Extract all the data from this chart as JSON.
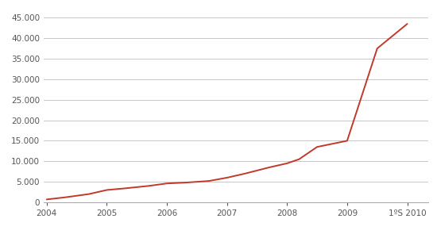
{
  "x_labels": [
    "2004",
    "2005",
    "2006",
    "2007",
    "2008",
    "2009",
    "1ºS 2010"
  ],
  "x_ticks": [
    0,
    1,
    2,
    3,
    4,
    5,
    6
  ],
  "x_data": [
    0,
    0.3,
    0.7,
    1.0,
    1.3,
    1.7,
    2.0,
    2.3,
    2.5,
    2.7,
    3.0,
    3.3,
    3.7,
    4.0,
    4.2,
    4.5,
    5.0,
    5.5,
    6.0
  ],
  "y_data": [
    700,
    1200,
    2000,
    3000,
    3400,
    4000,
    4600,
    4800,
    5000,
    5200,
    6000,
    7000,
    8500,
    9500,
    10500,
    13500,
    15000,
    37500,
    43500
  ],
  "line_color": "#c0392b",
  "background_color": "#ffffff",
  "grid_color": "#c8c8c8",
  "ylim": [
    0,
    47000
  ],
  "yticks": [
    0,
    5000,
    10000,
    15000,
    20000,
    25000,
    30000,
    35000,
    40000,
    45000
  ],
  "tick_label_color": "#555555",
  "line_width": 1.4,
  "tick_fontsize": 7.5
}
